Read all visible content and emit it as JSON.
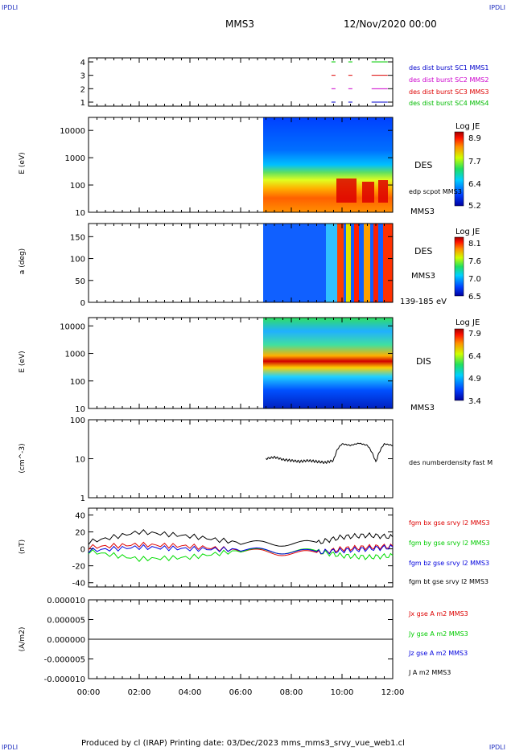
{
  "corners": {
    "top_left": "IPDLI",
    "top_right": "IPDLI",
    "bottom_left": "IPDLI",
    "bottom_right": "IPDLI"
  },
  "header": {
    "spacecraft": "MMS3",
    "date": "12/Nov/2020 00:00"
  },
  "footer": {
    "text": "Produced by cl (IRAP)   Printing date: 03/Dec/2023   mms_mms3_srvy_vue_web1.cl"
  },
  "colors": {
    "sc1": "#0000cc",
    "sc2": "#cc00cc",
    "sc3": "#dd0000",
    "sc4": "#00cc00",
    "bx": "#dd0000",
    "by": "#00dd00",
    "bz": "#0000dd",
    "bt": "#000000"
  },
  "panels": {
    "p1": {
      "legend": [
        "des dist burst SC1 MMS1",
        "des dist burst SC2 MMS2",
        "des dist burst SC3 MMS3",
        "des dist burst SC4 MMS4"
      ]
    },
    "p2": {
      "ylabel": "E (eV)",
      "right_label": "DES",
      "overlay_label": "edp scpot MMS3",
      "bottom_right": "MMS3",
      "cbar_title": "Log JE",
      "cbar_ticks": [
        "8.9",
        "7.7",
        "6.4",
        "5.2"
      ]
    },
    "p3": {
      "ylabel": "a (deg)",
      "right_label": "DES",
      "sub_label": "MMS3",
      "bottom_right": "139-185 eV",
      "cbar_title": "Log JE",
      "cbar_ticks": [
        "8.1",
        "7.6",
        "7.0",
        "6.5"
      ]
    },
    "p4": {
      "ylabel": "E (eV)",
      "right_label": "DIS",
      "bottom_right": "MMS3",
      "cbar_title": "Log JE",
      "cbar_ticks": [
        "7.9",
        "6.4",
        "4.9",
        "3.4"
      ]
    },
    "p5": {
      "ylabel": "(cm^-3)",
      "legend": "des numberdensity fast M"
    },
    "p6": {
      "ylabel": "(nT)",
      "legend": [
        "fgm bx gse srvy l2 MMS3",
        "fgm by gse srvy l2 MMS3",
        "fgm bz gse srvy l2 MMS3",
        "fgm bt gse srvy l2 MMS3"
      ]
    },
    "p7": {
      "ylabel": "(A/m2)",
      "legend": [
        "Jx gse A m2 MMS3",
        "Jy gse A m2 MMS3",
        "Jz gse A m2 MMS3",
        "J A m2 MMS3"
      ]
    }
  },
  "chart_data": [
    {
      "type": "line",
      "title": "",
      "ylabel": "",
      "yticks": [
        "4",
        "3",
        "2",
        "1"
      ],
      "ylim": [
        0.7,
        4.3
      ],
      "series": [
        {
          "name": "des dist burst SC1 MMS1",
          "x": [
            "09:35",
            "10:15",
            "11:10"
          ],
          "y": [
            1,
            1,
            1
          ]
        },
        {
          "name": "des dist burst SC2 MMS2",
          "x": [
            "09:35",
            "10:15",
            "11:10"
          ],
          "y": [
            2,
            2,
            2
          ]
        },
        {
          "name": "des dist burst SC3 MMS3",
          "x": [
            "09:35",
            "10:15",
            "11:10"
          ],
          "y": [
            3,
            3,
            3
          ]
        },
        {
          "name": "des dist burst SC4 MMS4",
          "x": [
            "09:35",
            "10:15",
            "11:10"
          ],
          "y": [
            4,
            4,
            4
          ]
        }
      ]
    },
    {
      "type": "heatmap",
      "ylabel": "E (eV)",
      "yscale": "log",
      "ylim": [
        10,
        30000
      ],
      "yticks": [
        "10000",
        "1000",
        "100",
        "10"
      ],
      "data_start": "06:55",
      "data_end": "12:00"
    },
    {
      "type": "heatmap",
      "ylabel": "a (deg)",
      "ylim": [
        0,
        180
      ],
      "yticks": [
        "150",
        "100",
        "50",
        "0"
      ],
      "data_start": "06:55",
      "data_end": "12:00"
    },
    {
      "type": "heatmap",
      "ylabel": "E (eV)",
      "yscale": "log",
      "ylim": [
        10,
        20000
      ],
      "yticks": [
        "10000",
        "1000",
        "100",
        "10"
      ],
      "data_start": "06:55",
      "data_end": "12:00"
    },
    {
      "type": "line",
      "ylabel": "(cm^-3)",
      "yscale": "log",
      "ylim": [
        1,
        100
      ],
      "yticks": [
        "100",
        "10",
        "1"
      ],
      "series": [
        {
          "name": "des numberdensity fast M",
          "x": [
            "07:00",
            "07:20",
            "07:40",
            "08:00",
            "08:20",
            "08:40",
            "09:00",
            "09:20",
            "09:40",
            "09:50",
            "10:00",
            "10:20",
            "10:40",
            "11:00",
            "11:20",
            "11:40",
            "12:00"
          ],
          "y": [
            10,
            11,
            9.5,
            9,
            8.5,
            9,
            8.5,
            8,
            9,
            18,
            24,
            22,
            25,
            22,
            8,
            24,
            22
          ]
        }
      ]
    },
    {
      "type": "line",
      "ylabel": "(nT)",
      "ylim": [
        -45,
        48
      ],
      "yticks": [
        "40",
        "20",
        "0",
        "-20",
        "-40"
      ],
      "series": [
        {
          "name": "fgm bx gse srvy l2 MMS3",
          "x": [
            "00:00",
            "02:00",
            "04:00",
            "06:00",
            "07:30",
            "09:00",
            "10:00",
            "11:00",
            "12:00"
          ],
          "y": [
            2,
            5,
            3,
            -2,
            -5,
            -5,
            0,
            2,
            3
          ]
        },
        {
          "name": "fgm by gse srvy l2 MMS3",
          "x": [
            "00:00",
            "02:00",
            "04:00",
            "06:00",
            "07:30",
            "09:00",
            "10:00",
            "11:00",
            "12:00"
          ],
          "y": [
            -3,
            -12,
            -10,
            -2,
            -3,
            -3,
            -8,
            -10,
            -8
          ]
        },
        {
          "name": "fgm bz gse srvy l2 MMS3",
          "x": [
            "00:00",
            "02:00",
            "04:00",
            "06:00",
            "07:30",
            "09:00",
            "10:00",
            "11:00",
            "12:00"
          ],
          "y": [
            -2,
            2,
            0,
            -1,
            -3,
            -4,
            -2,
            0,
            2
          ]
        },
        {
          "name": "fgm bt gse srvy l2 MMS3",
          "x": [
            "00:00",
            "02:00",
            "04:00",
            "06:00",
            "07:30",
            "09:00",
            "10:00",
            "11:00",
            "12:00"
          ],
          "y": [
            8,
            20,
            15,
            7,
            6,
            7,
            14,
            16,
            14
          ]
        }
      ]
    },
    {
      "type": "line",
      "ylabel": "(A/m2)",
      "ylim": [
        -1e-05,
        1e-05
      ],
      "yticks": [
        "0.000010",
        "0.000005",
        "0.000000",
        "-0.000005",
        "-0.000010"
      ],
      "xticks": [
        "00:00",
        "02:00",
        "04:00",
        "06:00",
        "08:00",
        "10:00",
        "12:00"
      ],
      "series": [
        {
          "name": "Jx gse A m2 MMS3",
          "x": [
            "00:00",
            "12:00"
          ],
          "y": [
            0,
            0
          ]
        },
        {
          "name": "Jy gse A m2 MMS3",
          "x": [
            "00:00",
            "12:00"
          ],
          "y": [
            0,
            0
          ]
        },
        {
          "name": "Jz gse A m2 MMS3",
          "x": [
            "00:00",
            "12:00"
          ],
          "y": [
            0,
            0
          ]
        },
        {
          "name": "J A m2 MMS3",
          "x": [
            "00:00",
            "12:00"
          ],
          "y": [
            0,
            0
          ]
        }
      ]
    }
  ]
}
